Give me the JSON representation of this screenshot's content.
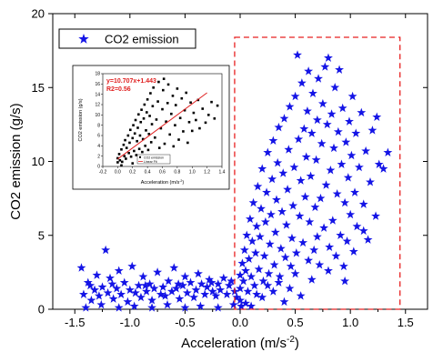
{
  "chart_data": {
    "type": "scatter",
    "xlabel": "Acceleration (m/s",
    "xlabel_sup": "-2",
    "xlabel_tail": ")",
    "ylabel": "CO2 emission (g/s)",
    "xlim": [
      -1.7,
      1.7
    ],
    "ylim": [
      0,
      20
    ],
    "xticks": [
      -1.5,
      -1.0,
      -0.5,
      0.0,
      0.5,
      1.0,
      1.5
    ],
    "xtick_labels": [
      "-1.5",
      "-1.0",
      "-0.5",
      "0.0",
      "0.5",
      "1.0",
      "1.5"
    ],
    "yticks": [
      0,
      5,
      10,
      15,
      20
    ],
    "ytick_labels": [
      "0",
      "5",
      "10",
      "15",
      "20"
    ],
    "legend_position": "top-left",
    "highlight_region": {
      "x": [
        -0.05,
        1.45
      ],
      "y": [
        0,
        18.4
      ],
      "color": "#e82020",
      "style": "dashed"
    },
    "series": [
      {
        "name": "CO2 emission",
        "color": "#1414e6",
        "marker": "star",
        "points": [
          [
            -1.44,
            2.8
          ],
          [
            -1.42,
            1.0
          ],
          [
            -1.38,
            1.8
          ],
          [
            -1.35,
            0.6
          ],
          [
            -1.32,
            1.3
          ],
          [
            -1.3,
            2.3
          ],
          [
            -1.28,
            0.9
          ],
          [
            -1.25,
            1.5
          ],
          [
            -1.22,
            4.0
          ],
          [
            -1.2,
            1.1
          ],
          [
            -1.18,
            2.1
          ],
          [
            -1.15,
            0.7
          ],
          [
            -1.12,
            1.4
          ],
          [
            -1.1,
            2.6
          ],
          [
            -1.08,
            1.0
          ],
          [
            -1.05,
            1.8
          ],
          [
            -1.02,
            0.5
          ],
          [
            -1.0,
            1.3
          ],
          [
            -0.98,
            2.9
          ],
          [
            -0.95,
            1.1
          ],
          [
            -0.92,
            1.6
          ],
          [
            -0.9,
            0.8
          ],
          [
            -0.88,
            2.2
          ],
          [
            -0.85,
            1.2
          ],
          [
            -0.82,
            1.7
          ],
          [
            -0.8,
            0.6
          ],
          [
            -0.78,
            1.4
          ],
          [
            -0.75,
            2.5
          ],
          [
            -0.72,
            1.0
          ],
          [
            -0.7,
            1.5
          ],
          [
            -0.68,
            0.9
          ],
          [
            -0.65,
            1.9
          ],
          [
            -0.62,
            1.2
          ],
          [
            -0.6,
            2.8
          ],
          [
            -0.58,
            1.4
          ],
          [
            -0.55,
            0.7
          ],
          [
            -0.52,
            1.6
          ],
          [
            -0.5,
            2.2
          ],
          [
            -0.48,
            1.1
          ],
          [
            -0.45,
            1.8
          ],
          [
            -0.42,
            0.8
          ],
          [
            -0.4,
            1.3
          ],
          [
            -0.38,
            2.4
          ],
          [
            -0.35,
            1.7
          ],
          [
            -0.32,
            1.0
          ],
          [
            -0.3,
            1.5
          ],
          [
            -0.28,
            2.0
          ],
          [
            -0.25,
            1.2
          ],
          [
            -0.22,
            0.9
          ],
          [
            -0.2,
            1.7
          ],
          [
            -0.18,
            1.3
          ],
          [
            -0.15,
            2.1
          ],
          [
            -0.12,
            1.0
          ],
          [
            -0.1,
            1.6
          ],
          [
            -0.08,
            1.9
          ],
          [
            -0.05,
            1.2
          ],
          [
            -0.03,
            0.8
          ],
          [
            -1.4,
            0.1
          ],
          [
            -1.1,
            0.1
          ],
          [
            -0.8,
            0.1
          ],
          [
            -0.5,
            0.1
          ],
          [
            -0.2,
            0.1
          ],
          [
            -1.26,
            0.3
          ],
          [
            -0.96,
            0.2
          ],
          [
            -0.66,
            0.3
          ],
          [
            -0.36,
            0.2
          ],
          [
            -0.06,
            0.3
          ],
          [
            -1.36,
            1.6
          ],
          [
            -1.16,
            1.7
          ],
          [
            -0.86,
            1.6
          ],
          [
            -0.56,
            1.7
          ],
          [
            -0.26,
            1.8
          ],
          [
            0.0,
            0.6
          ],
          [
            0.0,
            1.4
          ],
          [
            0.0,
            2.3
          ],
          [
            0.01,
            0.2
          ],
          [
            0.02,
            3.1
          ],
          [
            0.03,
            1.9
          ],
          [
            0.04,
            4.0
          ],
          [
            0.05,
            2.6
          ],
          [
            0.06,
            5.0
          ],
          [
            0.07,
            1.2
          ],
          [
            0.08,
            3.4
          ],
          [
            0.09,
            6.1
          ],
          [
            0.1,
            2.2
          ],
          [
            0.11,
            4.6
          ],
          [
            0.12,
            7.2
          ],
          [
            0.13,
            1.6
          ],
          [
            0.14,
            3.8
          ],
          [
            0.15,
            5.6
          ],
          [
            0.16,
            8.3
          ],
          [
            0.17,
            2.7
          ],
          [
            0.18,
            4.9
          ],
          [
            0.19,
            6.8
          ],
          [
            0.2,
            9.5
          ],
          [
            0.21,
            1.9
          ],
          [
            0.22,
            3.6
          ],
          [
            0.23,
            5.9
          ],
          [
            0.24,
            7.9
          ],
          [
            0.25,
            10.6
          ],
          [
            0.26,
            2.4
          ],
          [
            0.27,
            4.4
          ],
          [
            0.28,
            6.4
          ],
          [
            0.29,
            8.8
          ],
          [
            0.3,
            11.4
          ],
          [
            0.31,
            3.0
          ],
          [
            0.32,
            5.2
          ],
          [
            0.33,
            7.4
          ],
          [
            0.34,
            9.9
          ],
          [
            0.35,
            12.3
          ],
          [
            0.36,
            2.2
          ],
          [
            0.37,
            4.1
          ],
          [
            0.38,
            6.6
          ],
          [
            0.39,
            9.2
          ],
          [
            0.4,
            12.9
          ],
          [
            0.41,
            3.5
          ],
          [
            0.42,
            5.7
          ],
          [
            0.43,
            8.1
          ],
          [
            0.44,
            10.8
          ],
          [
            0.45,
            13.7
          ],
          [
            0.46,
            2.9
          ],
          [
            0.47,
            4.8
          ],
          [
            0.48,
            7.0
          ],
          [
            0.49,
            9.6
          ],
          [
            0.5,
            14.4
          ],
          [
            0.51,
            3.8
          ],
          [
            0.52,
            17.2
          ],
          [
            0.53,
            11.5
          ],
          [
            0.54,
            6.3
          ],
          [
            0.55,
            8.7
          ],
          [
            0.56,
            15.3
          ],
          [
            0.57,
            4.5
          ],
          [
            0.58,
            12.2
          ],
          [
            0.59,
            7.6
          ],
          [
            0.6,
            10.3
          ],
          [
            0.61,
            13.4
          ],
          [
            0.62,
            3.3
          ],
          [
            0.63,
            5.9
          ],
          [
            0.64,
            9.0
          ],
          [
            0.65,
            11.9
          ],
          [
            0.66,
            14.6
          ],
          [
            0.67,
            4.0
          ],
          [
            0.68,
            6.9
          ],
          [
            0.69,
            10.1
          ],
          [
            0.7,
            12.8
          ],
          [
            0.71,
            15.6
          ],
          [
            0.72,
            3.0
          ],
          [
            0.73,
            7.5
          ],
          [
            0.74,
            11.2
          ],
          [
            0.75,
            13.9
          ],
          [
            0.76,
            5.5
          ],
          [
            0.77,
            16.4
          ],
          [
            0.78,
            8.4
          ],
          [
            0.79,
            12.5
          ],
          [
            0.8,
            17.0
          ],
          [
            0.81,
            4.2
          ],
          [
            0.82,
            9.4
          ],
          [
            0.83,
            13.2
          ],
          [
            0.84,
            6.0
          ],
          [
            0.85,
            10.9
          ],
          [
            0.86,
            15.0
          ],
          [
            0.87,
            3.6
          ],
          [
            0.88,
            7.8
          ],
          [
            0.89,
            12.0
          ],
          [
            0.9,
            16.2
          ],
          [
            0.91,
            5.0
          ],
          [
            0.92,
            9.8
          ],
          [
            0.93,
            13.6
          ],
          [
            0.94,
            2.9
          ],
          [
            0.95,
            7.2
          ],
          [
            0.96,
            11.3
          ],
          [
            0.97,
            4.6
          ],
          [
            0.98,
            8.9
          ],
          [
            0.99,
            12.7
          ],
          [
            1.0,
            6.4
          ],
          [
            1.01,
            10.4
          ],
          [
            1.02,
            14.4
          ],
          [
            1.03,
            3.9
          ],
          [
            1.04,
            7.9
          ],
          [
            1.05,
            11.9
          ],
          [
            1.06,
            5.6
          ],
          [
            1.08,
            9.6
          ],
          [
            1.1,
            13.3
          ],
          [
            1.12,
            7.1
          ],
          [
            1.14,
            10.7
          ],
          [
            1.16,
            4.7
          ],
          [
            1.18,
            8.6
          ],
          [
            1.2,
            12.1
          ],
          [
            1.23,
            6.3
          ],
          [
            1.26,
            9.8
          ],
          [
            1.3,
            9.5
          ],
          [
            1.34,
            10.6
          ],
          [
            1.24,
            13.0
          ],
          [
            1.12,
            5.3
          ],
          [
            0.62,
            16.1
          ],
          [
            0.7,
            4.9
          ],
          [
            0.45,
            1.4
          ],
          [
            0.3,
            1.2
          ],
          [
            0.15,
            1.0
          ],
          [
            0.05,
            0.4
          ],
          [
            0.2,
            0.8
          ],
          [
            0.35,
            1.8
          ],
          [
            0.5,
            2.4
          ],
          [
            0.65,
            2.0
          ],
          [
            0.8,
            2.6
          ],
          [
            0.95,
            1.9
          ],
          [
            0.1,
            0.2
          ],
          [
            0.4,
            0.5
          ],
          [
            0.55,
            0.9
          ],
          [
            0.25,
            1.6
          ]
        ]
      }
    ],
    "inset": {
      "ylabel": "CO2 emission (g/s)",
      "xlabel": "Acceleration (m/s",
      "xlabel_sup": "-2",
      "xlabel_tail": ")",
      "equation": "y=10.707x+1.443",
      "r2": "R2=0.56",
      "xlim": [
        -0.2,
        1.4
      ],
      "ylim": [
        0,
        18
      ],
      "xticks": [
        -0.2,
        0.0,
        0.2,
        0.4,
        0.6,
        0.8,
        1.0,
        1.2,
        1.4
      ],
      "xtick_labels": [
        "-0.2",
        "0.0",
        "0.2",
        "0.4",
        "0.6",
        "0.8",
        "1.0",
        "1.2",
        "1.4"
      ],
      "yticks": [
        0,
        2,
        4,
        6,
        8,
        10,
        12,
        14,
        16,
        18
      ],
      "ytick_labels": [
        "0",
        "2",
        "4",
        "6",
        "8",
        "10",
        "12",
        "14",
        "16",
        "18"
      ],
      "fit_line": {
        "slope": 10.707,
        "intercept": 1.443,
        "x_range": [
          0.0,
          1.2
        ],
        "color": "#e02020"
      },
      "point_color": "#000000",
      "legend": [
        "CO2 emission",
        "Linear Fit"
      ],
      "points": [
        [
          0.0,
          0.8
        ],
        [
          0.0,
          1.6
        ],
        [
          0.02,
          2.4
        ],
        [
          0.03,
          1.2
        ],
        [
          0.05,
          3.3
        ],
        [
          0.06,
          0.9
        ],
        [
          0.08,
          4.2
        ],
        [
          0.09,
          2.0
        ],
        [
          0.1,
          5.1
        ],
        [
          0.11,
          1.5
        ],
        [
          0.12,
          3.6
        ],
        [
          0.14,
          6.0
        ],
        [
          0.15,
          2.6
        ],
        [
          0.16,
          4.6
        ],
        [
          0.17,
          7.1
        ],
        [
          0.18,
          1.9
        ],
        [
          0.2,
          5.5
        ],
        [
          0.21,
          8.0
        ],
        [
          0.22,
          3.0
        ],
        [
          0.23,
          6.4
        ],
        [
          0.24,
          9.0
        ],
        [
          0.25,
          2.2
        ],
        [
          0.26,
          4.9
        ],
        [
          0.27,
          7.5
        ],
        [
          0.28,
          10.1
        ],
        [
          0.29,
          3.4
        ],
        [
          0.3,
          6.0
        ],
        [
          0.31,
          8.6
        ],
        [
          0.32,
          11.0
        ],
        [
          0.33,
          2.8
        ],
        [
          0.34,
          5.3
        ],
        [
          0.35,
          9.3
        ],
        [
          0.36,
          12.0
        ],
        [
          0.37,
          4.0
        ],
        [
          0.38,
          7.0
        ],
        [
          0.39,
          10.5
        ],
        [
          0.4,
          13.0
        ],
        [
          0.41,
          3.2
        ],
        [
          0.42,
          6.3
        ],
        [
          0.43,
          9.8
        ],
        [
          0.44,
          14.2
        ],
        [
          0.45,
          4.7
        ],
        [
          0.46,
          8.2
        ],
        [
          0.47,
          11.7
        ],
        [
          0.48,
          15.3
        ],
        [
          0.5,
          5.6
        ],
        [
          0.52,
          9.1
        ],
        [
          0.54,
          12.6
        ],
        [
          0.55,
          16.4
        ],
        [
          0.56,
          3.6
        ],
        [
          0.58,
          7.4
        ],
        [
          0.6,
          11.1
        ],
        [
          0.61,
          14.8
        ],
        [
          0.62,
          17.0
        ],
        [
          0.63,
          4.4
        ],
        [
          0.65,
          8.7
        ],
        [
          0.67,
          12.3
        ],
        [
          0.68,
          15.9
        ],
        [
          0.7,
          6.2
        ],
        [
          0.72,
          10.2
        ],
        [
          0.74,
          13.7
        ],
        [
          0.75,
          3.9
        ],
        [
          0.77,
          8.0
        ],
        [
          0.78,
          11.9
        ],
        [
          0.8,
          15.1
        ],
        [
          0.82,
          5.2
        ],
        [
          0.84,
          9.4
        ],
        [
          0.86,
          13.2
        ],
        [
          0.88,
          6.8
        ],
        [
          0.9,
          10.9
        ],
        [
          0.92,
          14.3
        ],
        [
          0.94,
          4.6
        ],
        [
          0.96,
          8.6
        ],
        [
          0.98,
          12.4
        ],
        [
          1.0,
          6.9
        ],
        [
          1.02,
          10.4
        ],
        [
          1.05,
          9.0
        ],
        [
          1.08,
          12.9
        ],
        [
          1.1,
          7.4
        ],
        [
          1.14,
          11.2
        ],
        [
          1.18,
          8.5
        ],
        [
          1.22,
          10.0
        ],
        [
          1.26,
          12.5
        ],
        [
          1.3,
          9.3
        ],
        [
          1.34,
          11.8
        ],
        [
          0.05,
          0.2
        ],
        [
          0.2,
          0.6
        ],
        [
          0.35,
          1.1
        ],
        [
          0.5,
          1.4
        ],
        [
          0.65,
          1.8
        ]
      ]
    }
  }
}
